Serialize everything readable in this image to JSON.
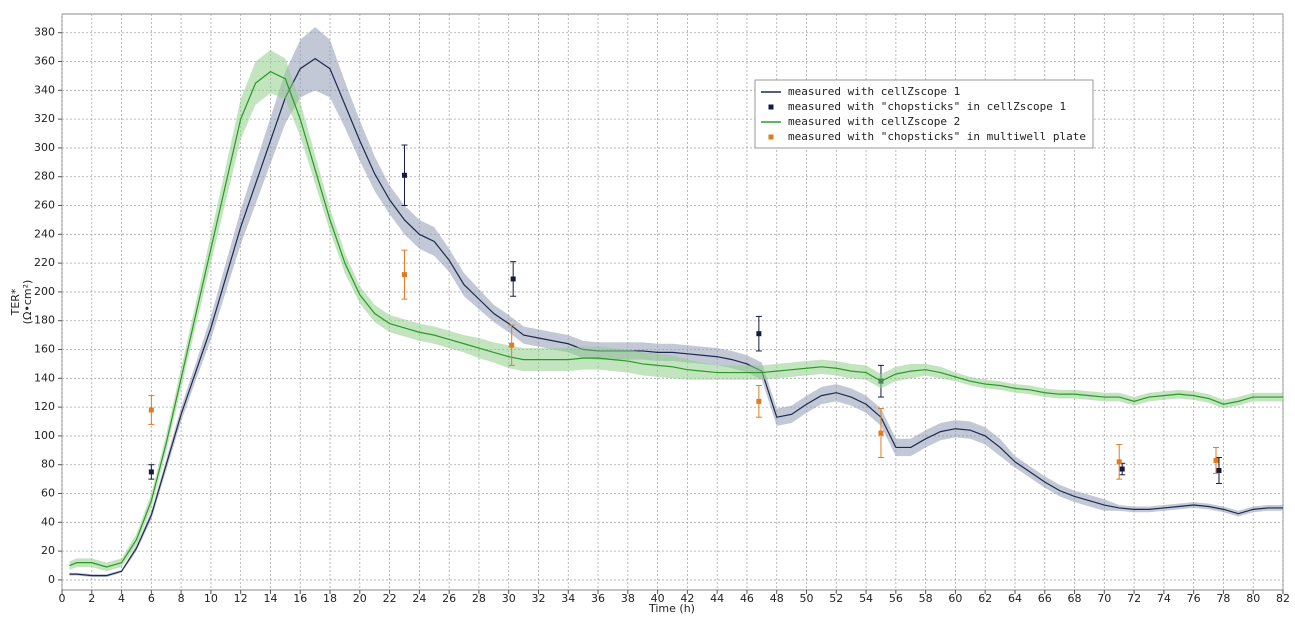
{
  "chart_data": {
    "type": "line",
    "xlabel": "Time (h)",
    "ylabel": "TER*",
    "ylabel_unit": "(Ω•cm²)",
    "xlim": [
      0,
      82
    ],
    "ylim": [
      -7,
      393
    ],
    "xticks": [
      0,
      2,
      4,
      6,
      8,
      10,
      12,
      14,
      16,
      18,
      20,
      22,
      24,
      26,
      28,
      30,
      32,
      34,
      36,
      38,
      40,
      42,
      44,
      46,
      48,
      50,
      52,
      54,
      56,
      58,
      60,
      62,
      64,
      66,
      68,
      70,
      72,
      74,
      76,
      78,
      80,
      82
    ],
    "yticks": [
      0,
      20,
      40,
      60,
      80,
      100,
      120,
      140,
      160,
      180,
      200,
      220,
      240,
      260,
      280,
      300,
      320,
      340,
      360,
      380
    ],
    "grid": true,
    "x": [
      0.5,
      1,
      2,
      3,
      4,
      5,
      6,
      7,
      8,
      9,
      10,
      11,
      12,
      13,
      14,
      15,
      16,
      17,
      18,
      19,
      20,
      21,
      22,
      23,
      24,
      25,
      26,
      27,
      28,
      29,
      30,
      31,
      32,
      33,
      34,
      35,
      36,
      37,
      38,
      39,
      40,
      41,
      42,
      43,
      44,
      45,
      46,
      47,
      48,
      49,
      50,
      51,
      52,
      53,
      54,
      55,
      56,
      57,
      58,
      59,
      60,
      61,
      62,
      63,
      64,
      65,
      66,
      67,
      68,
      69,
      70,
      71,
      72,
      73,
      74,
      75,
      76,
      77,
      78,
      79,
      80,
      81,
      82
    ],
    "series": [
      {
        "name": "measured with cellZscope 1",
        "type": "line",
        "color": "#1c2a4d",
        "band_color": "#8f9bb5",
        "values": [
          4,
          4,
          3,
          3,
          6,
          22,
          45,
          80,
          115,
          145,
          175,
          210,
          245,
          275,
          305,
          335,
          355,
          362,
          355,
          330,
          305,
          282,
          264,
          250,
          240,
          235,
          222,
          205,
          195,
          185,
          178,
          170,
          168,
          166,
          164,
          160,
          159,
          159,
          159,
          159,
          158,
          158,
          157,
          156,
          155,
          153,
          150,
          145,
          113,
          115,
          122,
          128,
          130,
          127,
          122,
          113,
          92,
          92,
          98,
          103,
          105,
          104,
          100,
          92,
          82,
          75,
          68,
          62,
          58,
          55,
          52,
          50,
          49,
          49,
          50,
          51,
          52,
          51,
          49,
          46,
          49,
          50,
          50
        ],
        "band": [
          1,
          1,
          1,
          1,
          1,
          2,
          3,
          4,
          5,
          6,
          8,
          10,
          12,
          14,
          16,
          18,
          20,
          22,
          20,
          16,
          14,
          12,
          10,
          10,
          10,
          10,
          8,
          8,
          7,
          6,
          6,
          6,
          6,
          6,
          6,
          6,
          6,
          6,
          6,
          6,
          6,
          6,
          6,
          6,
          6,
          6,
          6,
          6,
          6,
          6,
          6,
          6,
          6,
          6,
          6,
          6,
          6,
          6,
          6,
          6,
          6,
          6,
          6,
          6,
          4,
          4,
          4,
          4,
          4,
          4,
          4,
          2,
          2,
          2,
          2,
          2,
          2,
          2,
          2,
          2,
          2,
          2,
          2
        ]
      },
      {
        "name": "measured with \"chopsticks\" in cellZscope 1",
        "type": "scatter",
        "color": "#141a40",
        "x": [
          6,
          23,
          30.3,
          46.8,
          55,
          71.2,
          77.7
        ],
        "values": [
          75,
          281,
          209,
          171,
          138,
          77,
          76
        ],
        "errors": [
          5,
          21,
          12,
          12,
          11,
          4,
          9
        ]
      },
      {
        "name": "measured with cellZscope 2",
        "type": "line",
        "color": "#2a9a24",
        "band_color": "#8fd08a",
        "values": [
          10,
          12,
          12,
          9,
          12,
          28,
          55,
          95,
          140,
          185,
          230,
          275,
          320,
          345,
          353,
          348,
          320,
          285,
          250,
          220,
          198,
          185,
          178,
          175,
          172,
          170,
          167,
          164,
          161,
          158,
          155,
          153,
          153,
          153,
          153,
          154,
          154,
          153,
          152,
          150,
          149,
          148,
          146,
          145,
          144,
          144,
          144,
          144,
          145,
          146,
          147,
          148,
          147,
          145,
          144,
          138,
          143,
          145,
          146,
          144,
          141,
          138,
          136,
          135,
          133,
          132,
          130,
          129,
          129,
          128,
          127,
          127,
          124,
          127,
          128,
          129,
          128,
          126,
          122,
          124,
          127,
          127,
          127
        ],
        "band": [
          3,
          3,
          3,
          3,
          3,
          4,
          5,
          6,
          7,
          8,
          10,
          12,
          14,
          15,
          15,
          14,
          12,
          10,
          8,
          7,
          6,
          6,
          6,
          6,
          6,
          6,
          6,
          6,
          7,
          7,
          8,
          8,
          8,
          8,
          8,
          8,
          8,
          8,
          8,
          8,
          8,
          8,
          7,
          6,
          5,
          5,
          5,
          5,
          5,
          5,
          5,
          5,
          5,
          5,
          5,
          5,
          5,
          5,
          4,
          4,
          3,
          3,
          3,
          3,
          3,
          3,
          3,
          3,
          3,
          3,
          3,
          3,
          3,
          3,
          3,
          3,
          3,
          3,
          3,
          3,
          3,
          3,
          3
        ]
      },
      {
        "name": "measured with \"chopsticks\" in multiwell plate",
        "type": "scatter",
        "color": "#e07b20",
        "x": [
          6,
          23,
          30.2,
          46.8,
          55,
          71,
          77.5
        ],
        "values": [
          118,
          212,
          163,
          124,
          102,
          82,
          83
        ],
        "errors": [
          10,
          17,
          14,
          11,
          17,
          12,
          9
        ]
      }
    ]
  }
}
